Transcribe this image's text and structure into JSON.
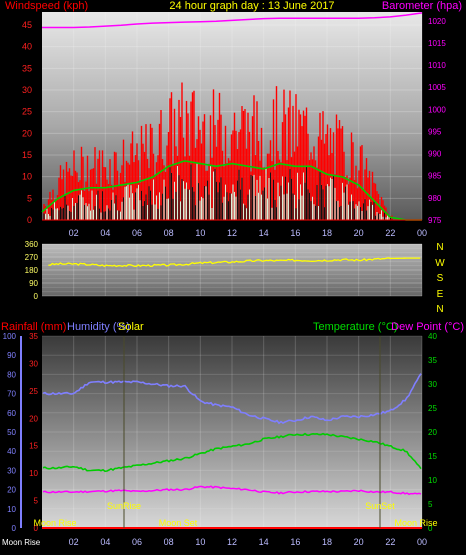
{
  "header": {
    "left_label": "Windspeed (kph)",
    "center_title": "24 hour graph day : 13 June 2017",
    "right_label": "Barometer (hpa)"
  },
  "panel3": {
    "rain_label": "Rainfall (mm)",
    "humidity_label": "Humidity (%)",
    "solar_label": "Solar",
    "temp_label": "Temperature (°C)",
    "dew_label": "Dew Point (°C)"
  },
  "wind_dir_letters": [
    "N",
    "W",
    "S",
    "E",
    "N"
  ],
  "astro": {
    "sunrise": "SunRise",
    "sunset": "SunSet",
    "moonrise_left": "Moon Rise",
    "moonset": "Moon Set",
    "moonrise_right": "Moon Rise",
    "bottom_moonrise": "Moon Rise"
  },
  "x_ticks": [
    "02",
    "04",
    "06",
    "08",
    "10",
    "12",
    "14",
    "16",
    "18",
    "20",
    "22",
    "00"
  ],
  "colors": {
    "wind": "#ff0000",
    "wind_avg": "#00d000",
    "wind_light": "#d8f0d8",
    "barometer": "#ff00ff",
    "direction": "#ffff00",
    "humidity": "#7f7fff",
    "temperature": "#00cc00",
    "dewpoint": "#ff00ff",
    "rain": "#ff0000",
    "solar": "#ffff00"
  },
  "chart_data": [
    {
      "type": "line",
      "title": "24 hour graph day : 13 June 2017",
      "x_hours": [
        0,
        1,
        2,
        3,
        4,
        5,
        6,
        7,
        8,
        9,
        10,
        11,
        12,
        13,
        14,
        15,
        16,
        17,
        18,
        19,
        20,
        21,
        22,
        23,
        24
      ],
      "series": [
        {
          "name": "Windspeed (kph)",
          "axis": "left",
          "values": [
            3,
            8,
            11,
            12,
            12,
            13,
            14,
            16,
            20,
            22,
            21,
            20,
            21,
            20,
            19,
            21,
            20,
            20,
            17,
            16,
            13,
            7,
            1,
            0,
            0
          ]
        },
        {
          "name": "Barometer (hpa)",
          "axis": "right",
          "values": [
            1018.5,
            1018.5,
            1018.5,
            1018.6,
            1018.8,
            1019.0,
            1019.3,
            1019.5,
            1019.6,
            1019.7,
            1019.8,
            1019.9,
            1020.1,
            1020.3,
            1020.5,
            1020.6,
            1020.6,
            1020.6,
            1020.6,
            1020.6,
            1020.6,
            1020.7,
            1020.9,
            1021.3,
            1021.8
          ]
        }
      ],
      "y_left_ticks": [
        0,
        5,
        10,
        15,
        20,
        25,
        30,
        35,
        40,
        45
      ],
      "y_right_ticks": [
        975,
        980,
        985,
        990,
        995,
        1000,
        1005,
        1010,
        1015,
        1020
      ],
      "ylim_left": [
        0,
        48
      ],
      "ylim_right": [
        975,
        1022
      ],
      "xlim": [
        0,
        24
      ]
    },
    {
      "type": "line",
      "title": "",
      "x_hours": [
        0,
        1,
        2,
        3,
        4,
        5,
        6,
        7,
        8,
        9,
        10,
        11,
        12,
        13,
        14,
        15,
        16,
        17,
        18,
        19,
        20,
        21,
        22,
        23,
        24
      ],
      "series": [
        {
          "name": "Wind direction",
          "values": [
            212,
            222,
            222,
            218,
            210,
            212,
            210,
            212,
            214,
            220,
            228,
            232,
            236,
            242,
            246,
            244,
            248,
            246,
            248,
            252,
            248,
            255,
            260,
            262,
            262
          ]
        }
      ],
      "y_ticks": [
        0,
        90,
        180,
        270,
        360
      ],
      "y_minor_ticks": [
        30,
        60,
        120,
        150,
        210,
        240,
        300,
        330
      ],
      "ylim": [
        0,
        360
      ],
      "xlim": [
        0,
        24
      ]
    },
    {
      "type": "line",
      "title": "",
      "x_hours": [
        0,
        1,
        2,
        3,
        4,
        5,
        6,
        7,
        8,
        9,
        10,
        11,
        12,
        13,
        14,
        15,
        16,
        17,
        18,
        19,
        20,
        21,
        22,
        23,
        24
      ],
      "series": [
        {
          "name": "Humidity (%)",
          "axis": "humidity",
          "values": [
            70,
            70,
            70,
            76,
            76,
            76,
            76,
            75,
            74,
            74,
            66,
            64,
            63,
            59,
            57,
            55,
            56,
            58,
            56,
            58,
            58,
            59,
            61,
            67,
            81
          ]
        },
        {
          "name": "Temperature (°C)",
          "axis": "temperature",
          "values": [
            12.5,
            12.5,
            12.8,
            12,
            12,
            12.5,
            13,
            13.5,
            14,
            14.5,
            15.5,
            16.5,
            17,
            17.5,
            18.5,
            19,
            19.5,
            19.5,
            19.5,
            19,
            18.5,
            18,
            17,
            16,
            12
          ]
        },
        {
          "name": "Dew Point (°C)",
          "axis": "temperature",
          "values": [
            7.5,
            7.5,
            7.5,
            7.6,
            7.7,
            7.8,
            7.6,
            7.8,
            8,
            8,
            8.6,
            8.5,
            8.2,
            8,
            7.5,
            7.3,
            7.5,
            7.6,
            7.6,
            7.6,
            7.8,
            7.5,
            7.5,
            7.2,
            7
          ]
        },
        {
          "name": "Rainfall (mm)",
          "axis": "rain",
          "values": [
            0,
            0,
            0,
            0,
            0,
            0,
            0,
            0,
            0,
            0,
            0,
            0,
            0,
            0,
            0,
            0,
            0,
            0,
            0,
            0,
            0,
            0,
            0,
            0,
            0
          ]
        }
      ],
      "y_humidity_ticks": [
        0,
        10,
        20,
        30,
        40,
        50,
        60,
        70,
        80,
        90,
        100
      ],
      "y_rain_ticks": [
        0,
        5,
        10,
        15,
        20,
        25,
        30,
        35
      ],
      "y_temp_ticks": [
        0,
        5,
        10,
        15,
        20,
        25,
        30,
        35,
        40
      ],
      "ylim_humidity": [
        0,
        100
      ],
      "ylim_rain": [
        0,
        35
      ],
      "ylim_temp": [
        0,
        40
      ],
      "xlim": [
        0,
        24
      ]
    }
  ]
}
